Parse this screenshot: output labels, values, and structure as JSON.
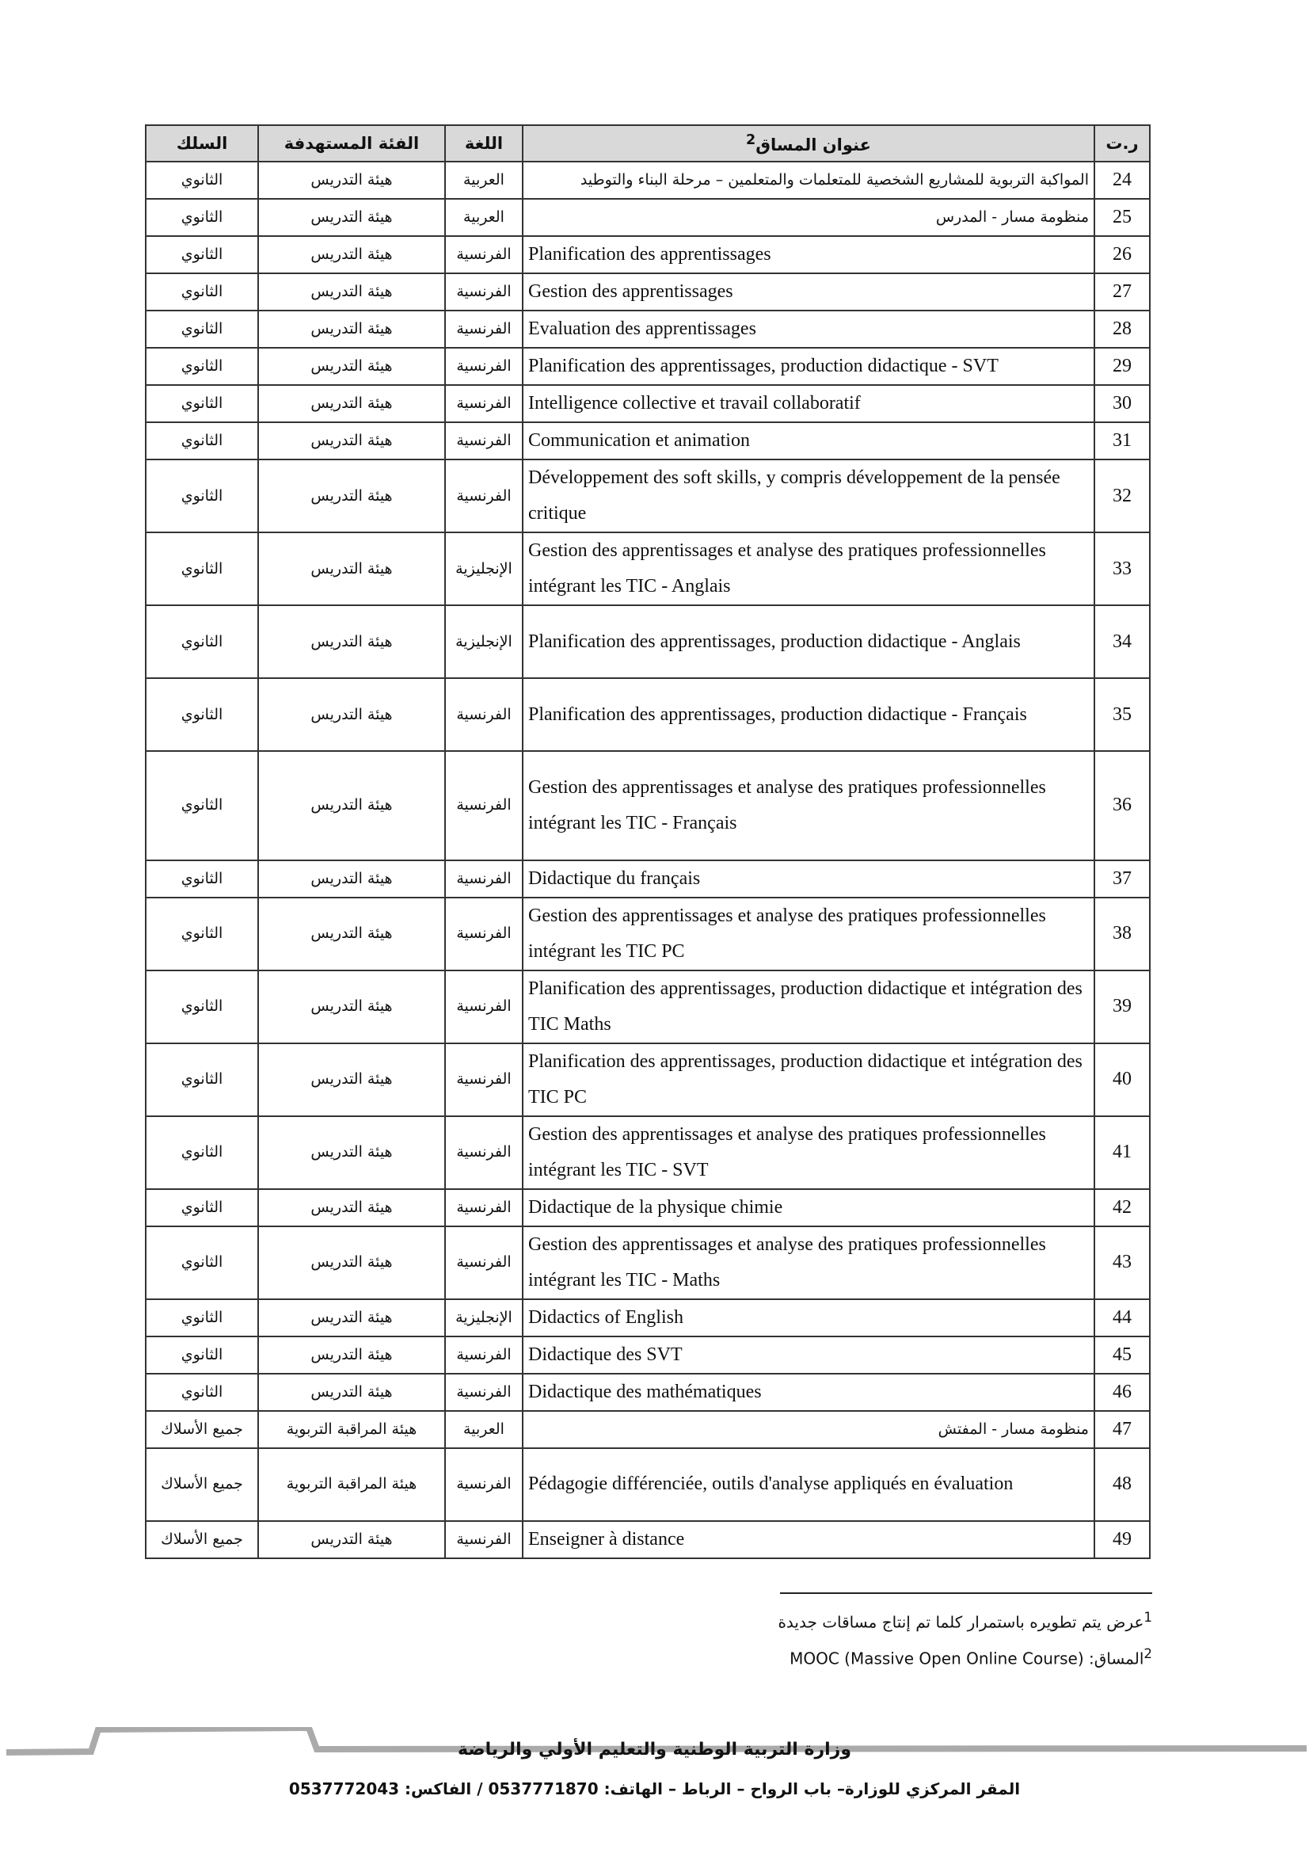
{
  "table": {
    "headers": {
      "number": "ر.ت",
      "title": "عنوان المساق",
      "title_note": "2",
      "language": "اللغة",
      "target": "الفئة المستهدفة",
      "cycle": "السلك"
    },
    "rows": [
      {
        "n": "24",
        "title": "المواكبة التربوية للمشاريع الشخصية للمتعلمات والمتعلمين – مرحلة البناء والتوطيد",
        "rtl": true,
        "lang": "العربية",
        "target": "هيئة التدريس",
        "cycle": "الثانوي",
        "lines": 1
      },
      {
        "n": "25",
        "title": "منظومة مسار - المدرس",
        "rtl": true,
        "lang": "العربية",
        "target": "هيئة التدريس",
        "cycle": "الثانوي",
        "lines": 1
      },
      {
        "n": "26",
        "title": "Planification des apprentissages",
        "lang": "الفرنسية",
        "target": "هيئة التدريس",
        "cycle": "الثانوي",
        "lines": 1
      },
      {
        "n": "27",
        "title": "Gestion des apprentissages",
        "lang": "الفرنسية",
        "target": "هيئة التدريس",
        "cycle": "الثانوي",
        "lines": 1
      },
      {
        "n": "28",
        "title": "Evaluation des apprentissages",
        "lang": "الفرنسية",
        "target": "هيئة التدريس",
        "cycle": "الثانوي",
        "lines": 1
      },
      {
        "n": "29",
        "title": "Planification des apprentissages, production didactique - SVT",
        "lang": "الفرنسية",
        "target": "هيئة التدريس",
        "cycle": "الثانوي",
        "lines": 1
      },
      {
        "n": "30",
        "title": "Intelligence collective et travail collaboratif",
        "lang": "الفرنسية",
        "target": "هيئة التدريس",
        "cycle": "الثانوي",
        "lines": 1
      },
      {
        "n": "31",
        "title": "Communication et animation",
        "lang": "الفرنسية",
        "target": "هيئة التدريس",
        "cycle": "الثانوي",
        "lines": 1
      },
      {
        "n": "32",
        "title": "Développement des soft skills, y compris développement de la pensée critique",
        "lang": "الفرنسية",
        "target": "هيئة التدريس",
        "cycle": "الثانوي",
        "lines": 2
      },
      {
        "n": "33",
        "title": "Gestion des apprentissages et analyse des pratiques professionnelles intégrant les TIC - Anglais",
        "lang": "الإنجليزية",
        "target": "هيئة التدريس",
        "cycle": "الثانوي",
        "lines": 2
      },
      {
        "n": "34",
        "title": "Planification des apprentissages, production didactique - Anglais",
        "lang": "الإنجليزية",
        "target": "هيئة التدريس",
        "cycle": "الثانوي",
        "lines": 2
      },
      {
        "n": "35",
        "title": "Planification des apprentissages, production didactique - Français",
        "lang": "الفرنسية",
        "target": "هيئة التدريس",
        "cycle": "الثانوي",
        "lines": 2
      },
      {
        "n": "36",
        "title": "Gestion des apprentissages et analyse des pratiques professionnelles intégrant les TIC - Français",
        "lang": "الفرنسية",
        "target": "هيئة التدريس",
        "cycle": "الثانوي",
        "lines": 3
      },
      {
        "n": "37",
        "title": "Didactique du français",
        "lang": "الفرنسية",
        "target": "هيئة التدريس",
        "cycle": "الثانوي",
        "lines": 1
      },
      {
        "n": "38",
        "title": "Gestion des apprentissages et analyse des pratiques professionnelles intégrant les TIC PC",
        "lang": "الفرنسية",
        "target": "هيئة التدريس",
        "cycle": "الثانوي",
        "lines": 2
      },
      {
        "n": "39",
        "title": "Planification des apprentissages, production didactique et intégration des TIC Maths",
        "lang": "الفرنسية",
        "target": "هيئة التدريس",
        "cycle": "الثانوي",
        "lines": 2
      },
      {
        "n": "40",
        "title": "Planification des apprentissages, production didactique et intégration des TIC PC",
        "lang": "الفرنسية",
        "target": "هيئة التدريس",
        "cycle": "الثانوي",
        "lines": 2
      },
      {
        "n": "41",
        "title": "Gestion des apprentissages et analyse des pratiques professionnelles intégrant les TIC - SVT",
        "lang": "الفرنسية",
        "target": "هيئة التدريس",
        "cycle": "الثانوي",
        "lines": 2
      },
      {
        "n": "42",
        "title": "Didactique de la physique chimie",
        "lang": "الفرنسية",
        "target": "هيئة التدريس",
        "cycle": "الثانوي",
        "lines": 1
      },
      {
        "n": "43",
        "title": "Gestion des apprentissages et analyse des pratiques professionnelles intégrant les TIC - Maths",
        "lang": "الفرنسية",
        "target": "هيئة التدريس",
        "cycle": "الثانوي",
        "lines": 2
      },
      {
        "n": "44",
        "title": "Didactics of English",
        "lang": "الإنجليزية",
        "target": "هيئة التدريس",
        "cycle": "الثانوي",
        "lines": 1
      },
      {
        "n": "45",
        "title": "Didactique des SVT",
        "lang": "الفرنسية",
        "target": "هيئة التدريس",
        "cycle": "الثانوي",
        "lines": 1
      },
      {
        "n": "46",
        "title": "Didactique des mathématiques",
        "lang": "الفرنسية",
        "target": "هيئة التدريس",
        "cycle": "الثانوي",
        "lines": 1
      },
      {
        "n": "47",
        "title": "منظومة مسار - المفتش",
        "rtl": true,
        "lang": "العربية",
        "target": "هيئة المراقبة التربوية",
        "cycle": "جميع الأسلاك",
        "lines": 1
      },
      {
        "n": "48",
        "title": "Pédagogie différenciée, outils d'analyse appliqués en évaluation",
        "lang": "الفرنسية",
        "target": "هيئة المراقبة التربوية",
        "cycle": "جميع الأسلاك",
        "lines": 2
      },
      {
        "n": "49",
        "title": "Enseigner à distance",
        "lang": "الفرنسية",
        "target": "هيئة التدريس",
        "cycle": "جميع الأسلاك",
        "lines": 1
      }
    ]
  },
  "footnotes": [
    {
      "mark": "1",
      "text": "عرض يتم تطويره باستمرار كلما تم إنتاج مساقات جديدة"
    },
    {
      "mark": "2",
      "text": "المساق: MOOC (Massive Open Online Course)"
    }
  ],
  "footer": {
    "ministry": "وزارة التربية الوطنية والتعليم الأولي والرياضة",
    "address": "المقر المركزي للوزارة– باب الرواح – الرباط – الهاتف: 0537771870 / الفاكس: 0537772043"
  }
}
